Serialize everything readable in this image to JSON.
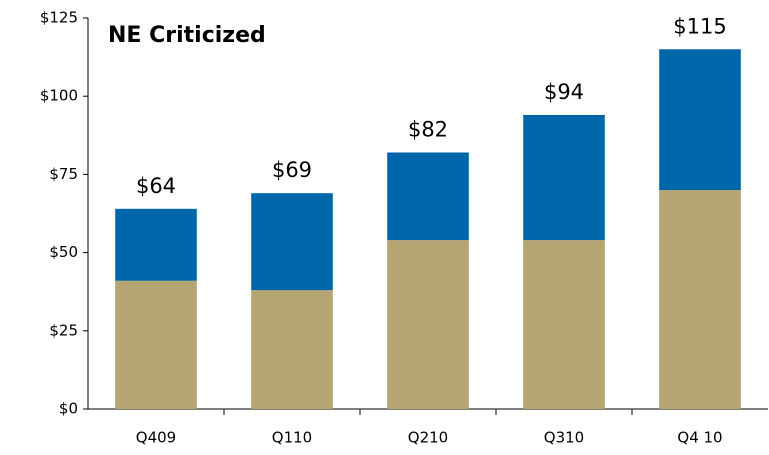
{
  "chart_data": {
    "type": "stacked_bar",
    "title": "NE Criticized",
    "categories": [
      "Q409",
      "Q110",
      "Q210",
      "Q310",
      "Q4 10"
    ],
    "series": [
      {
        "color": "#b5a572",
        "values": [
          41,
          38,
          54,
          54,
          70
        ]
      },
      {
        "color": "#0066aa",
        "values": [
          23,
          31,
          28,
          40,
          45
        ]
      }
    ],
    "totals": [
      64,
      69,
      82,
      94,
      115
    ],
    "total_labels": [
      "$64",
      "$69",
      "$82",
      "$94",
      "$115"
    ],
    "ylim": [
      0,
      125
    ],
    "yticks": [
      {
        "value": 0,
        "label": "$0"
      },
      {
        "value": 25,
        "label": "$25"
      },
      {
        "value": 50,
        "label": "$50"
      },
      {
        "value": 75,
        "label": "$75"
      },
      {
        "value": 100,
        "label": "$100"
      },
      {
        "value": 125,
        "label": "$125"
      }
    ],
    "grid": false
  }
}
